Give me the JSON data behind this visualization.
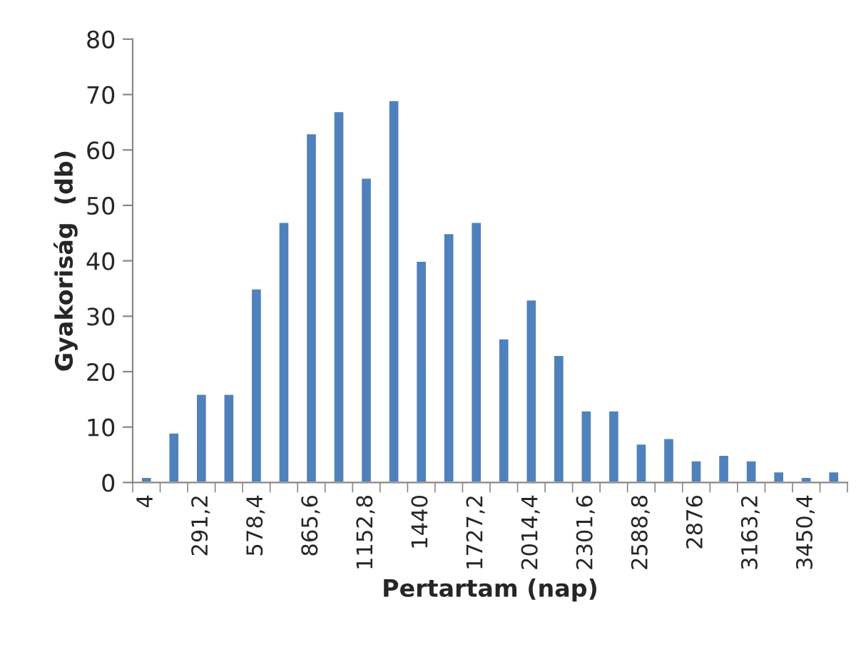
{
  "chart_data": {
    "type": "bar",
    "xlabel": "Pertartam (nap)",
    "ylabel": "Gyakoriság  (db)",
    "categories": [
      "4",
      null,
      "291,2",
      null,
      "578,4",
      null,
      "865,6",
      null,
      "1152,8",
      null,
      "1440",
      null,
      "1727,2",
      null,
      "2014,4",
      null,
      "2301,6",
      null,
      "2588,8",
      null,
      "2876",
      null,
      "3163,2",
      null,
      "3450,4",
      null
    ],
    "values": [
      1,
      9,
      16,
      16,
      35,
      47,
      63,
      67,
      55,
      69,
      40,
      45,
      47,
      26,
      33,
      23,
      13,
      13,
      7,
      8,
      4,
      5,
      4,
      2,
      1,
      2
    ],
    "color": "#4f81bd",
    "ylim": [
      0,
      80
    ],
    "yticks": [
      0,
      10,
      20,
      30,
      40,
      50,
      60,
      70,
      80
    ],
    "grid": false
  }
}
